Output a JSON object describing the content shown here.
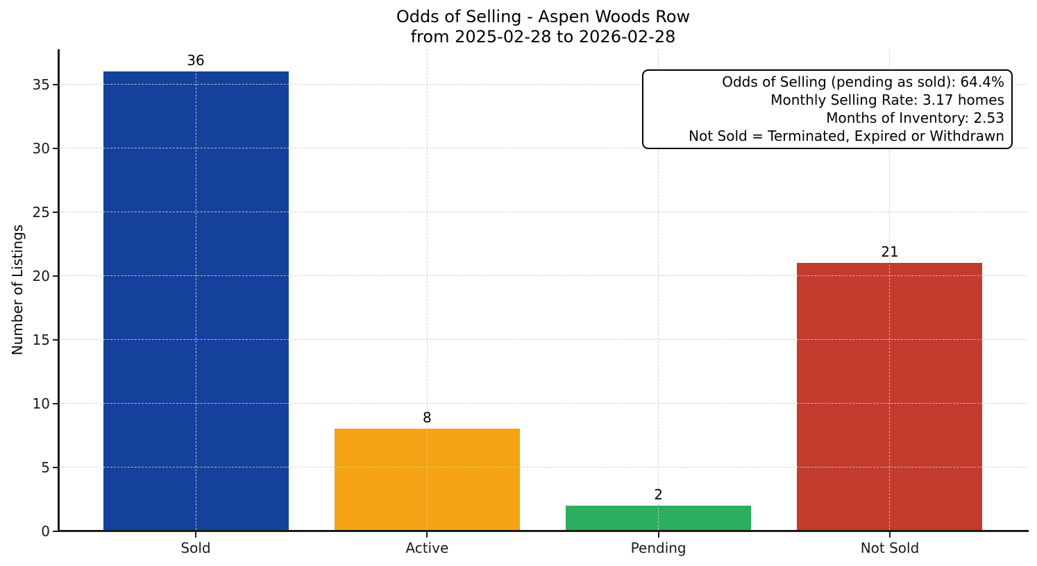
{
  "chart_data": {
    "type": "bar",
    "title": "Odds of Selling - Aspen Woods Row",
    "subtitle": "from 2025-02-28 to 2026-02-28",
    "categories": [
      "Sold",
      "Active",
      "Pending",
      "Not Sold"
    ],
    "values": [
      36,
      8,
      2,
      21
    ],
    "bar_colors": [
      "#14419c",
      "#f5a214",
      "#2bae60",
      "#c23b2c"
    ],
    "ylabel": "Number of Listings",
    "xlabel": "",
    "yticks": [
      0,
      5,
      10,
      15,
      20,
      25,
      30,
      35
    ],
    "ylim": [
      0,
      37.7
    ],
    "grid": "dashed, both axes, drawn over bars",
    "legend": "none",
    "annotation": {
      "lines": [
        "Odds of Selling (pending as sold): 64.4%",
        "Monthly Selling Rate: 3.17 homes",
        "Months of Inventory: 2.53",
        "Not Sold = Terminated, Expired or Withdrawn"
      ]
    },
    "stats": {
      "odds_of_selling_pct": 64.4,
      "monthly_selling_rate_homes": 3.17,
      "months_of_inventory": 2.53
    }
  }
}
